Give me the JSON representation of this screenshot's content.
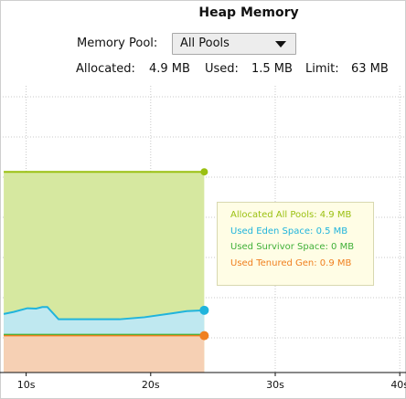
{
  "header": {
    "title": "Heap Memory"
  },
  "pool": {
    "label": "Memory Pool:",
    "selected": "All Pools"
  },
  "stats": {
    "allocated_label": "Allocated:",
    "allocated_value": "4.9 MB",
    "used_label": "Used:",
    "used_value": "1.5 MB",
    "limit_label": "Limit:",
    "limit_value": "63 MB"
  },
  "colors": {
    "allocated": "#9ac010",
    "eden": "#20b4dc",
    "survivor": "#40b038",
    "tenured": "#f08020",
    "allocated_fill": "#d6e8a0",
    "eden_fill": "#bfe8f0",
    "tenured_fill": "#f6d0b4"
  },
  "tooltip": {
    "allocated": "Allocated All Pools: 4.9 MB",
    "eden": "Used Eden Space: 0.5 MB",
    "survivor": "Used Survivor Space: 0 MB",
    "tenured": "Used Tenured Gen: 0.9 MB"
  },
  "chart_data": {
    "type": "area",
    "x_ticks": [
      {
        "value": 10,
        "label": "10s"
      },
      {
        "value": 20,
        "label": "20s"
      },
      {
        "value": 30,
        "label": "30s"
      },
      {
        "value": 40,
        "label": "40s"
      }
    ],
    "xlim": [
      7.9,
      40.5
    ],
    "ylim": [
      0,
      7
    ],
    "grid": true,
    "series": [
      {
        "name": "Allocated All Pools",
        "key": "allocated",
        "x": [
          8.2,
          24.3
        ],
        "values": [
          4.9,
          4.9
        ]
      },
      {
        "name": "Used Eden Space",
        "key": "eden",
        "x": [
          8.2,
          9.0,
          10.1,
          10.8,
          11.3,
          11.7,
          12.6,
          15.0,
          17.5,
          19.5,
          21.8,
          22.9,
          24.3
        ],
        "values": [
          0.53,
          0.58,
          0.67,
          0.66,
          0.7,
          0.7,
          0.4,
          0.4,
          0.4,
          0.45,
          0.55,
          0.6,
          0.62
        ]
      },
      {
        "name": "Used Survivor Space",
        "key": "survivor",
        "x": [
          8.2,
          24.3
        ],
        "values": [
          0.0,
          0.0
        ]
      },
      {
        "name": "Used Tenured Gen",
        "key": "tenured",
        "x": [
          8.2,
          24.3
        ],
        "values": [
          0.9,
          0.9
        ]
      }
    ]
  }
}
